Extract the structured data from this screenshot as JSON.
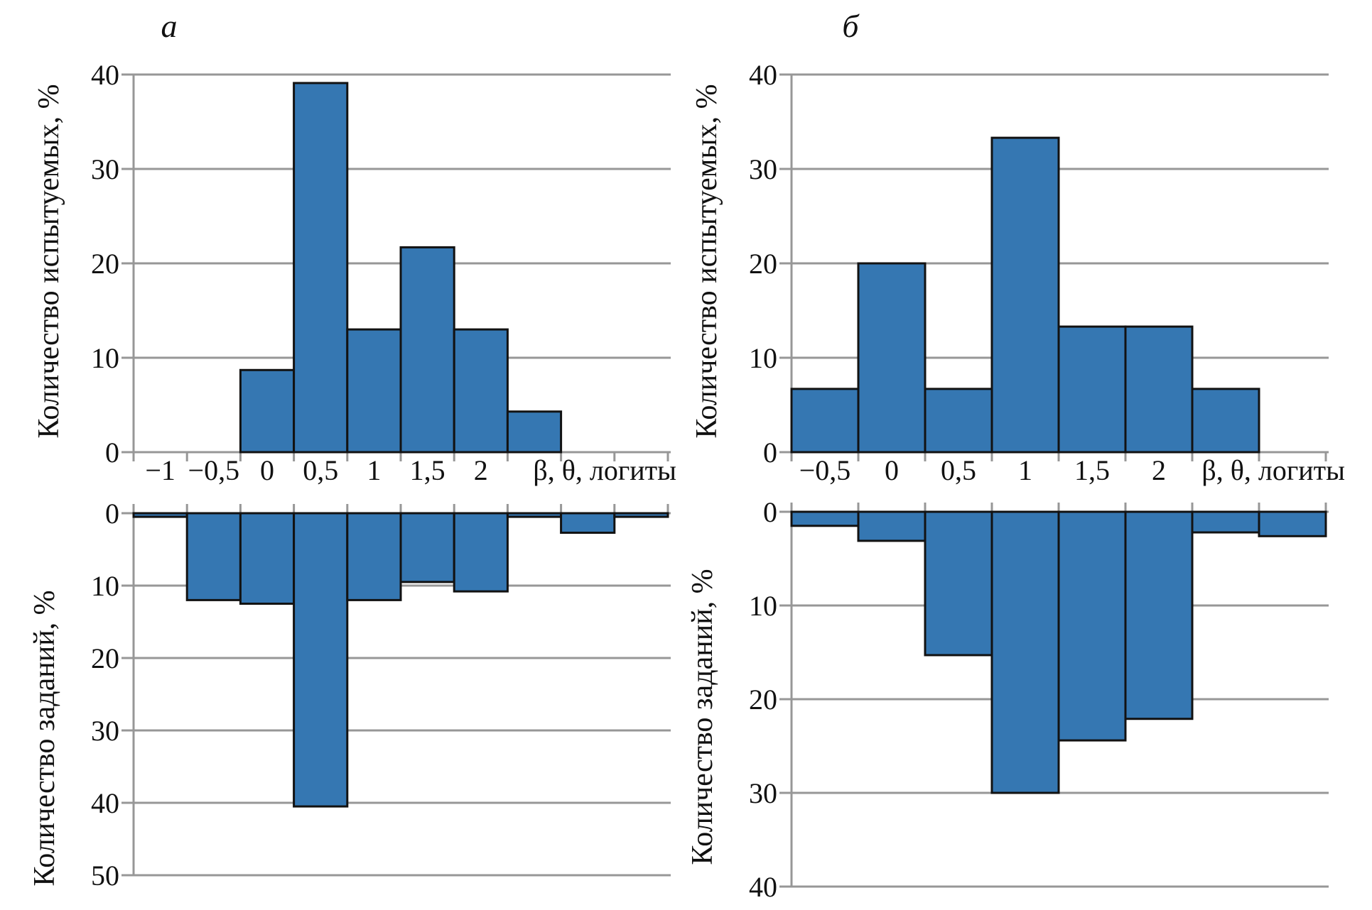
{
  "figure": {
    "panel_a_label": "а",
    "panel_b_label": "б"
  },
  "style": {
    "bar_fill": "#3577B2",
    "bar_stroke": "#121212",
    "grid_color": "#979797",
    "text_color": "#111111",
    "background": "#ffffff"
  },
  "chart_data": [
    {
      "id": "top-left",
      "panel": "а",
      "type": "bar",
      "orientation": "up",
      "bin_labels": [
        "−1",
        "−0,5",
        "0",
        "0,5",
        "1",
        "1,5",
        "2",
        "",
        "",
        ""
      ],
      "values": [
        0,
        0,
        8.7,
        39.1,
        13,
        21.7,
        13,
        4.3,
        0,
        0
      ],
      "ylabel": "Количество испытуемых, %",
      "xlabel": "β, θ, логиты",
      "yticks": [
        0,
        10,
        20,
        30,
        40
      ],
      "ylim": [
        0,
        40
      ],
      "grid": true,
      "legend": "none"
    },
    {
      "id": "bottom-left",
      "panel": "а",
      "type": "bar",
      "orientation": "down",
      "bin_labels": [
        "",
        "",
        "",
        "",
        "",
        "",
        "",
        "",
        "",
        ""
      ],
      "values": [
        0.5,
        12,
        12.5,
        40.5,
        12,
        9.5,
        10.8,
        0.5,
        2.7,
        0.5
      ],
      "ylabel": "Количество заданий, %",
      "xlabel": "",
      "yticks": [
        0,
        10,
        20,
        30,
        40,
        50
      ],
      "ylim": [
        0,
        50
      ],
      "grid": true,
      "legend": "none"
    },
    {
      "id": "top-right",
      "panel": "б",
      "type": "bar",
      "orientation": "up",
      "bin_labels": [
        "−0,5",
        "0",
        "0,5",
        "1",
        "1,5",
        "2",
        "",
        ""
      ],
      "values": [
        6.7,
        20,
        6.7,
        33.3,
        13.3,
        13.3,
        6.7,
        0
      ],
      "ylabel": "Количество испытуемых, %",
      "xlabel": "β, θ, логиты",
      "yticks": [
        0,
        10,
        20,
        30,
        40
      ],
      "ylim": [
        0,
        40
      ],
      "grid": true,
      "legend": "none"
    },
    {
      "id": "bottom-right",
      "panel": "б",
      "type": "bar",
      "orientation": "down",
      "bin_labels": [
        "",
        "",
        "",
        "",
        "",
        "",
        "",
        ""
      ],
      "values": [
        1.5,
        3.1,
        15.3,
        30,
        24.4,
        22.1,
        2.2,
        2.6
      ],
      "ylabel": "Количество заданий, %",
      "xlabel": "",
      "yticks": [
        0,
        10,
        20,
        30,
        40
      ],
      "ylim": [
        0,
        40
      ],
      "grid": true,
      "legend": "none"
    }
  ]
}
